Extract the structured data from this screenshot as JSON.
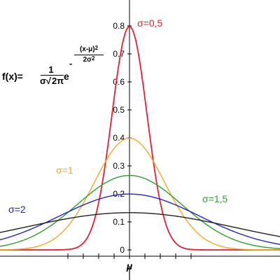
{
  "formula": {
    "lhs": "f(x)=",
    "coef_num": "1",
    "coef_den_sigma": "σ",
    "coef_den_sqrt": "√",
    "coef_den_radicand": "2π",
    "base": "e",
    "exp_sign": "-",
    "exp_num": "(x-μ)",
    "exp_num_power": "2",
    "exp_den": "2σ",
    "exp_den_power": "2"
  },
  "chart_data": {
    "type": "line",
    "title": "",
    "xlabel": "μ",
    "ylabel": "",
    "xlim": [
      -3.5,
      3.8
    ],
    "ylim": [
      0,
      0.82
    ],
    "mu": 0,
    "grid": false,
    "yticks": [
      "0",
      "0.1",
      "0.2",
      "0.3",
      "0.4",
      "0.5",
      "0.6",
      "0.7",
      "0.8"
    ],
    "series": [
      {
        "name": "σ=0,5",
        "sigma": 0.5,
        "color": "#ee1c2e"
      },
      {
        "name": "σ=1",
        "sigma": 1,
        "color": "#f7a823"
      },
      {
        "name": "σ=1,5",
        "sigma": 1.5,
        "color": "#2ca02c"
      },
      {
        "name": "σ=2",
        "sigma": 2,
        "color": "#2424c0"
      },
      {
        "name": "",
        "sigma": 3,
        "color": "#222222"
      }
    ]
  }
}
